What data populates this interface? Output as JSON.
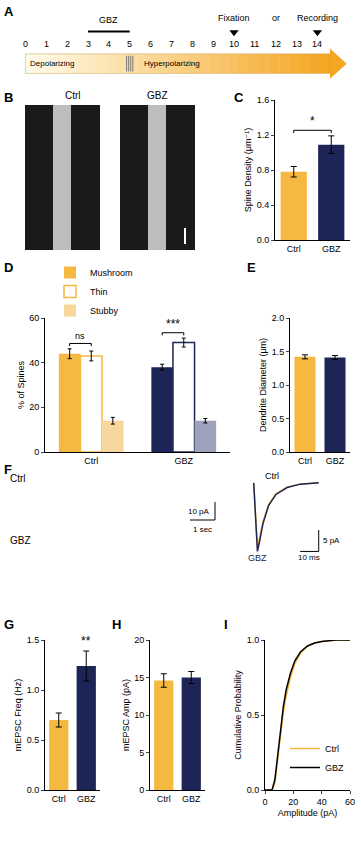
{
  "timeline": {
    "panel": "A",
    "days": [
      0,
      1,
      2,
      3,
      4,
      5,
      6,
      7,
      8,
      9,
      10,
      11,
      12,
      13,
      14
    ],
    "treatment": {
      "label": "GBZ",
      "start": 3,
      "end": 5
    },
    "phases": [
      {
        "label": "Depolarizing",
        "start": 0,
        "end": 5
      },
      {
        "label": "Hyperpolarizing",
        "start": 5,
        "end": 14
      }
    ],
    "endpoints": [
      {
        "label": "Fixation",
        "day": 10
      },
      {
        "label": "Recording",
        "day": 14
      }
    ],
    "connector": "or"
  },
  "images": {
    "panel": "B",
    "labels": [
      "Ctrl",
      "GBZ"
    ]
  },
  "recordings": {
    "panel": "F",
    "labels": [
      "Ctrl",
      "GBZ"
    ],
    "scale_labels": [
      "10 pA",
      "1 sec"
    ]
  },
  "chart_data": [
    {
      "panel": "C",
      "type": "bar",
      "y_label": "Spine Density (μm⁻¹)",
      "categories": [
        "Ctrl",
        "GBZ"
      ],
      "values": [
        0.78,
        1.09
      ],
      "errors": [
        0.06,
        0.1
      ],
      "colors": [
        "#F5B841",
        "#1C2556"
      ],
      "ylim": [
        0,
        1.6
      ],
      "yticks": [
        {
          "value": 0,
          "label": "0.0"
        },
        0.4,
        0.8,
        1.2,
        1.6
      ],
      "significance": [
        {
          "between": [
            "Ctrl",
            "GBZ"
          ],
          "label": "*"
        }
      ]
    },
    {
      "panel": "D",
      "type": "bar",
      "y_label": "% of Spines",
      "categories": [
        "Ctrl",
        "GBZ"
      ],
      "series": [
        {
          "name": "Mushroom",
          "values": [
            44,
            38
          ],
          "errors": [
            2.2,
            1.3
          ],
          "colors": [
            "#F5B841",
            "#1C2556"
          ]
        },
        {
          "name": "Thin",
          "marker": "hollow",
          "values": [
            43,
            49
          ],
          "errors": [
            2.2,
            2
          ],
          "colors": [
            "#F5B841",
            "#1C2556"
          ]
        },
        {
          "name": "Stubby",
          "values": [
            14,
            14
          ],
          "errors": [
            1.5,
            1
          ],
          "colors": [
            "#F7D79B",
            "#9DA1BC"
          ]
        }
      ],
      "ylim": [
        0,
        60
      ],
      "yticks": [
        0,
        20,
        40,
        60
      ],
      "legend": "top-left",
      "significance": [
        {
          "category": "Ctrl",
          "between": [
            "Mushroom",
            "Thin"
          ],
          "label": "ns"
        },
        {
          "category": "GBZ",
          "between": [
            "Mushroom",
            "Thin"
          ],
          "label": "***"
        }
      ]
    },
    {
      "panel": "E",
      "type": "bar",
      "y_label": "Dendrite Diameter (μm)",
      "categories": [
        "Ctrl",
        "GBZ"
      ],
      "values": [
        1.42,
        1.41
      ],
      "errors": [
        0.03,
        0.03
      ],
      "colors": [
        "#F5B841",
        "#1C2556"
      ],
      "ylim": [
        0,
        2
      ],
      "yticks": [
        {
          "value": 0,
          "label": "0.0"
        },
        0.5,
        {
          "value": 1,
          "label": "1.0"
        },
        1.5,
        {
          "value": 2,
          "label": "2.0"
        }
      ]
    },
    {
      "type": "line",
      "tick_labels": false,
      "x": [
        0,
        1,
        2,
        3,
        5,
        8,
        12,
        18,
        25,
        35
      ],
      "series": [
        {
          "name": "Ctrl",
          "color": "#F5B841",
          "values": [
            0,
            -8,
            -15,
            -13,
            -9,
            -5,
            -2.5,
            -1,
            -0.3,
            0
          ]
        },
        {
          "name": "GBZ",
          "color": "#1C2556",
          "values": [
            0,
            -8,
            -16,
            -14,
            -9.5,
            -5.3,
            -2.7,
            -1.1,
            -0.3,
            0
          ]
        }
      ],
      "xlim": [
        -2,
        40
      ],
      "ylim": [
        -18,
        3
      ],
      "scale_bars": [
        {
          "axis": "y",
          "value": 5,
          "label": "5 pA"
        },
        {
          "axis": "x",
          "value": 10,
          "label": "10 ms"
        }
      ]
    },
    {
      "panel": "G",
      "type": "bar",
      "y_label": "mEPSC Freq (Hz)",
      "categories": [
        "Ctrl",
        "GBZ"
      ],
      "values": [
        0.7,
        1.24
      ],
      "errors": [
        0.07,
        0.15
      ],
      "colors": [
        "#F5B841",
        "#1C2556"
      ],
      "ylim": [
        0,
        1.5
      ],
      "yticks": [
        {
          "value": 0,
          "label": "0.0"
        },
        0.5,
        {
          "value": 1,
          "label": "1.0"
        },
        1.5
      ],
      "significance": [
        {
          "category": "GBZ",
          "label": "**"
        }
      ]
    },
    {
      "panel": "H",
      "type": "bar",
      "y_label": "mEPSC Amp (pA)",
      "categories": [
        "Ctrl",
        "GBZ"
      ],
      "values": [
        14.6,
        15.0
      ],
      "errors": [
        0.9,
        0.8
      ],
      "colors": [
        "#F5B841",
        "#1C2556"
      ],
      "ylim": [
        0,
        20
      ],
      "yticks": [
        0,
        5,
        10,
        15,
        20
      ]
    },
    {
      "panel": "I",
      "type": "line",
      "x_label": "Amplitude (pA)",
      "y_label": "Cumulative Probability",
      "x": [
        0,
        5,
        7,
        9,
        11,
        13,
        15,
        18,
        21,
        25,
        30,
        35,
        40,
        50,
        60
      ],
      "series": [
        {
          "name": "Ctrl",
          "color": "#F5B841",
          "values": [
            0,
            0,
            0.05,
            0.2,
            0.38,
            0.52,
            0.63,
            0.75,
            0.84,
            0.91,
            0.96,
            0.98,
            0.99,
            1,
            1
          ]
        },
        {
          "name": "GBZ",
          "color": "#000000",
          "values": [
            0,
            0,
            0.07,
            0.23,
            0.42,
            0.56,
            0.67,
            0.78,
            0.86,
            0.92,
            0.96,
            0.98,
            0.99,
            1,
            1
          ]
        }
      ],
      "xlim": [
        0,
        60
      ],
      "xticks": [
        0,
        20,
        40,
        60
      ],
      "ylim": [
        0,
        1
      ],
      "yticks": [
        {
          "value": 0,
          "label": "0.0"
        },
        0.5,
        {
          "value": 1,
          "label": "1.0"
        }
      ],
      "legend": "bottom-right"
    }
  ]
}
